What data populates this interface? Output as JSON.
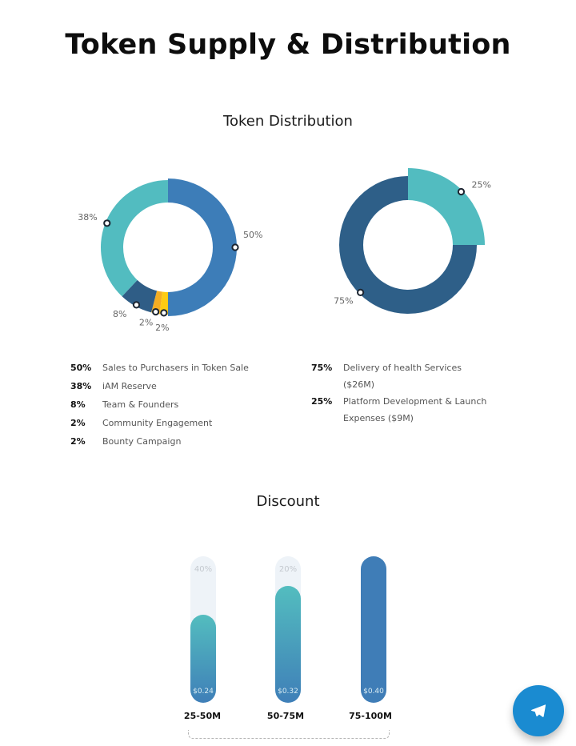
{
  "page_title": "Token Supply & Distribution",
  "distribution": {
    "title": "Token Distribution",
    "sales_chart": [
      {
        "percent": "50%",
        "value": 50,
        "label": "Sales to Purchasers in Token Sale",
        "color": "#3d7db8"
      },
      {
        "percent": "2%",
        "value": 2,
        "label": "Bounty Campaign",
        "color": "#fdcb14"
      },
      {
        "percent": "2%",
        "value": 2,
        "label": "Community Engagement",
        "color": "#f3ad23"
      },
      {
        "percent": "8%",
        "value": 8,
        "label": "Team & Founders",
        "color": "#2f5d86"
      },
      {
        "percent": "38%",
        "value": 38,
        "label": "iAM Reserve",
        "color": "#52bcc0"
      }
    ],
    "funds_chart": [
      {
        "percent": "25%",
        "value": 25,
        "label": "Platform Development & Launch Expenses ($9M)",
        "color": "#52bcc0"
      },
      {
        "percent": "75%",
        "value": 75,
        "label": "Delivery of health Services ($26M)",
        "color": "#2e5f88"
      }
    ],
    "legend_left": [
      {
        "percent": "50%",
        "label": "Sales to Purchasers in Token Sale"
      },
      {
        "percent": "38%",
        "label": "iAM Reserve"
      },
      {
        "percent": "8%",
        "label": "Team & Founders"
      },
      {
        "percent": "2%",
        "label": "Community Engagement"
      },
      {
        "percent": "2%",
        "label": "Bounty Campaign"
      }
    ],
    "legend_right": [
      {
        "percent": "75%",
        "label": "Delivery of health Services ($26M)"
      },
      {
        "percent": "25%",
        "label": "Platform Development & Launch Expenses ($9M)"
      }
    ]
  },
  "discount": {
    "title": "Discount",
    "tiers": [
      {
        "range": "25-50M",
        "discount": "40%",
        "price": "$0.24",
        "fill": 0.6
      },
      {
        "range": "50-75M",
        "discount": "20%",
        "price": "$0.32",
        "fill": 0.8
      },
      {
        "range": "75-100M",
        "discount": "",
        "price": "$0.40",
        "fill": 1.0
      }
    ]
  },
  "fab": {
    "icon": "telegram-icon",
    "color": "#1a8bd1"
  }
}
